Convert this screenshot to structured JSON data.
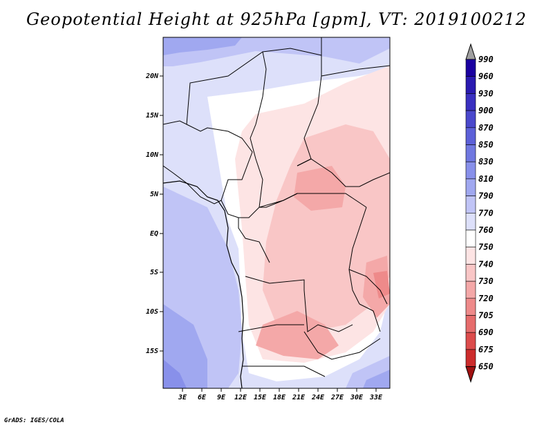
{
  "title": "Geopotential Height at 925hPa [gpm], VT: 2019100212",
  "credit": "GrADS: IGES/COLA",
  "map": {
    "lat_ticks": [
      "20N",
      "15N",
      "10N",
      "5N",
      "EQ",
      "5S",
      "10S",
      "15S"
    ],
    "lon_ticks": [
      "3E",
      "6E",
      "9E",
      "12E",
      "15E",
      "18E",
      "21E",
      "24E",
      "27E",
      "30E",
      "33E"
    ]
  },
  "colorbar": {
    "levels": [
      "990",
      "960",
      "930",
      "900",
      "870",
      "850",
      "830",
      "810",
      "790",
      "770",
      "760",
      "750",
      "740",
      "730",
      "720",
      "705",
      "690",
      "675",
      "650"
    ],
    "colors": [
      "#1a00a0",
      "#2a1ab0",
      "#3a30c0",
      "#4a48cc",
      "#5c60d8",
      "#7078e0",
      "#8890ea",
      "#a0a8f0",
      "#c0c4f6",
      "#dde0fa",
      "#ffffff",
      "#fde4e4",
      "#f9c6c6",
      "#f4a8a8",
      "#ee8a8a",
      "#e66c6c",
      "#dc4c4c",
      "#cc2c2c",
      "#b01010"
    ],
    "over_color": "#a0a0a0",
    "under_color": "#a01010"
  }
}
